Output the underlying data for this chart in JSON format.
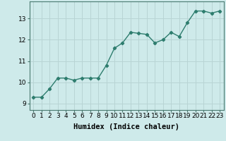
{
  "x": [
    0,
    1,
    2,
    3,
    4,
    5,
    6,
    7,
    8,
    9,
    10,
    11,
    12,
    13,
    14,
    15,
    16,
    17,
    18,
    19,
    20,
    21,
    22,
    23
  ],
  "y": [
    9.3,
    9.3,
    9.7,
    10.2,
    10.2,
    10.1,
    10.2,
    10.2,
    10.2,
    10.8,
    11.6,
    11.85,
    12.35,
    12.3,
    12.25,
    11.85,
    12.0,
    12.35,
    12.15,
    12.8,
    13.35,
    13.35,
    13.25,
    13.35
  ],
  "line_color": "#2e7d6e",
  "marker": "D",
  "marker_size": 2.2,
  "bg_color": "#ceeaea",
  "grid_color": "#b8d4d4",
  "xlabel": "Humidex (Indice chaleur)",
  "xlabel_fontsize": 7.5,
  "ylabel_ticks": [
    9,
    10,
    11,
    12,
    13
  ],
  "xtick_labels": [
    "0",
    "1",
    "2",
    "3",
    "4",
    "5",
    "6",
    "7",
    "8",
    "9",
    "10",
    "11",
    "12",
    "13",
    "14",
    "15",
    "16",
    "17",
    "18",
    "19",
    "20",
    "21",
    "22",
    "23"
  ],
  "xlim": [
    -0.5,
    23.5
  ],
  "ylim": [
    8.7,
    13.8
  ],
  "tick_fontsize": 6.5,
  "line_width": 1.0
}
